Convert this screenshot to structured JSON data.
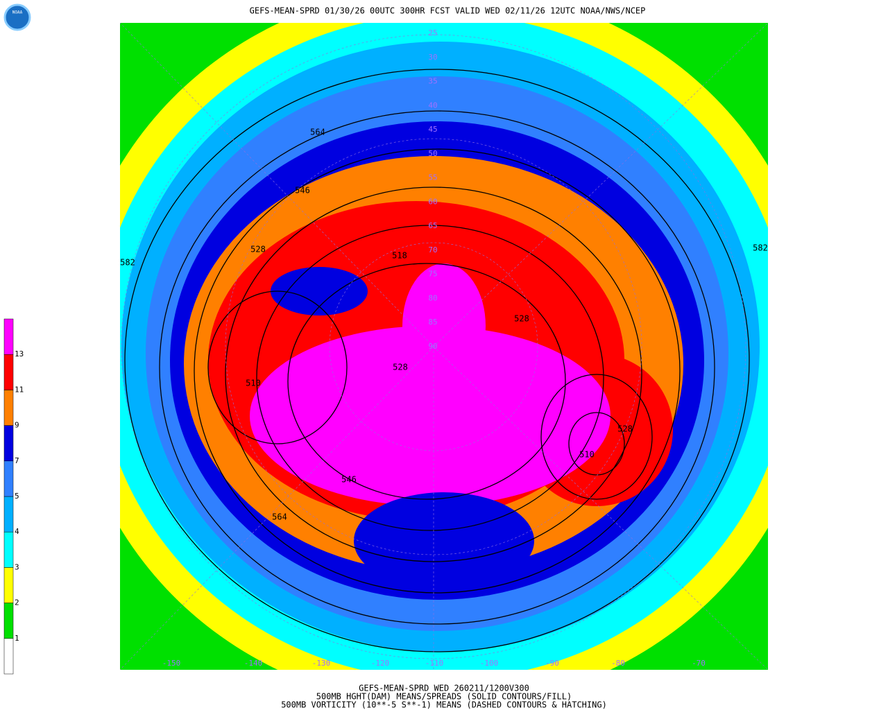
{
  "header": {
    "title": "GEFS-MEAN-SPRD 01/30/26 00UTC 300HR FCST VALID WED 02/11/26 12UTC NOAA/NWS/NCEP",
    "logo": "NOAA"
  },
  "legend": {
    "levels": [
      1,
      2,
      3,
      4,
      5,
      7,
      9,
      11,
      13
    ],
    "colors": [
      "#ffffff",
      "#00e000",
      "#ffff00",
      "#00ffff",
      "#00b0ff",
      "#3080ff",
      "#0000e0",
      "#ff8000",
      "#ff0000",
      "#ff00ff"
    ]
  },
  "contour_labels": [
    "564",
    "546",
    "528",
    "518",
    "528",
    "528",
    "510",
    "528",
    "510",
    "546",
    "564",
    "582",
    "582"
  ],
  "lat_labels": [
    "25",
    "30",
    "35",
    "40",
    "45",
    "50",
    "55",
    "60",
    "65",
    "70",
    "75",
    "80",
    "85",
    "90"
  ],
  "lon_labels": [
    "-150",
    "-140",
    "-130",
    "-120",
    "-110",
    "-100",
    "-90",
    "-80",
    "-70"
  ],
  "footer": [
    "GEFS-MEAN-SPRD WED 260211/1200V300",
    "500MB HGHT(DAM) MEANS/SPREADS (SOLID CONTOURS/FILL)",
    "500MB VORTICITY (10**-5 S**-1) MEANS (DASHED CONTOURS & HATCHING)"
  ]
}
